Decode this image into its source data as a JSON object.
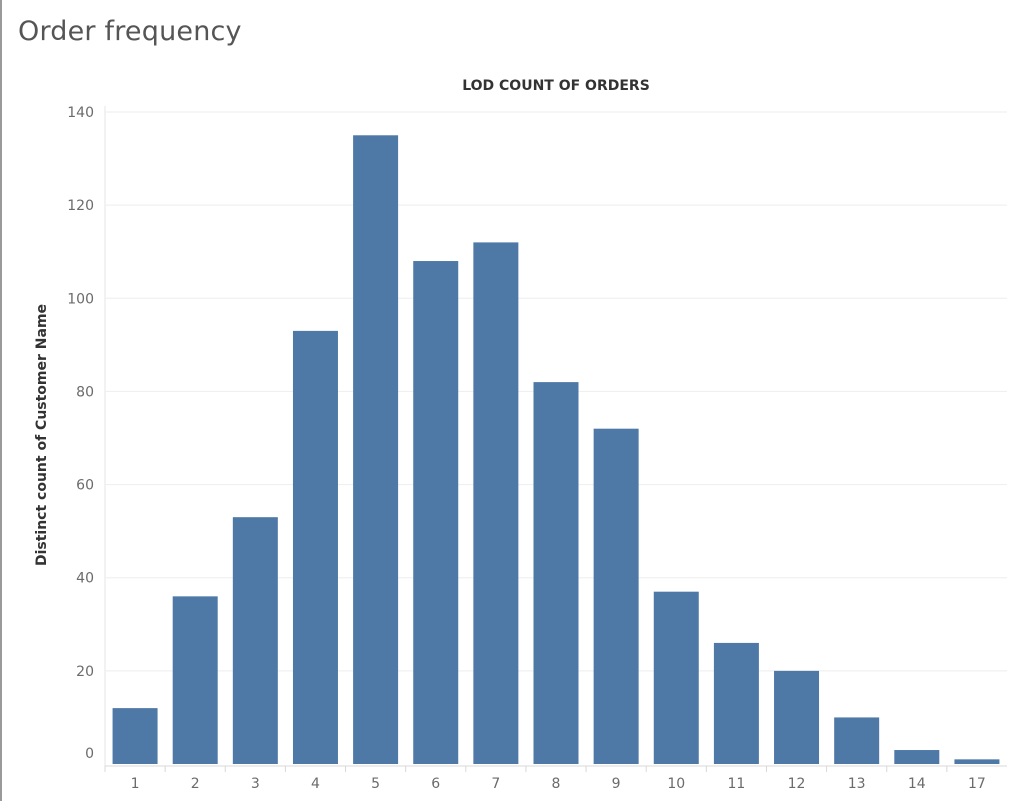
{
  "page": {
    "title": "Order frequency"
  },
  "chart_data": {
    "type": "bar",
    "title": "LOD COUNT OF ORDERS",
    "xlabel": "",
    "ylabel": "Distinct count of Customer Name",
    "categories": [
      "1",
      "2",
      "3",
      "4",
      "5",
      "6",
      "7",
      "8",
      "9",
      "10",
      "11",
      "12",
      "13",
      "14",
      "17"
    ],
    "values": [
      12,
      36,
      53,
      93,
      135,
      108,
      112,
      82,
      72,
      37,
      26,
      20,
      10,
      3,
      1
    ],
    "ylim": [
      0,
      140
    ],
    "yticks": [
      0,
      20,
      40,
      60,
      80,
      100,
      120,
      140
    ],
    "grid": true,
    "bar_color": "#4e79a7",
    "legend": "none"
  }
}
